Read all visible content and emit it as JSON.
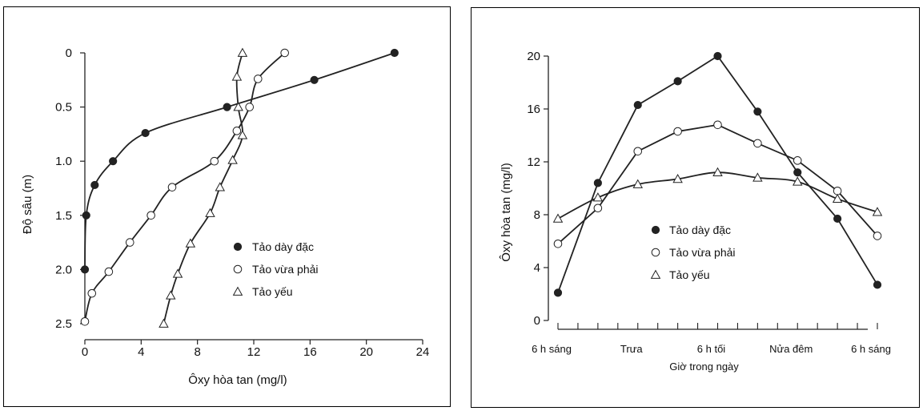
{
  "chart_data": [
    {
      "type": "line",
      "xlabel": "Ôxy hòa tan (mg/l)",
      "ylabel": "Độ sâu (m)",
      "xlim": [
        0,
        24
      ],
      "ylim": [
        2.5,
        0
      ],
      "x_ticks": [
        0,
        4,
        8,
        12,
        16,
        20,
        24
      ],
      "y_ticks": [
        0,
        0.5,
        1.0,
        1.5,
        2.0,
        2.5
      ],
      "x_tick_labels": [
        "0",
        "4",
        "8",
        "12",
        "16",
        "20",
        "24"
      ],
      "y_tick_labels": [
        "0",
        "0.5",
        "1.0",
        "1.5",
        "2.0",
        "2.5"
      ],
      "legend_position": "center-right",
      "series": [
        {
          "name": "Tảo dày đặc",
          "marker": "filled-circle",
          "points": [
            [
              22.0,
              0
            ],
            [
              16.3,
              0.25
            ],
            [
              10.1,
              0.5
            ],
            [
              4.3,
              0.74
            ],
            [
              2.0,
              1.0
            ],
            [
              0.7,
              1.22
            ],
            [
              0.1,
              1.5
            ],
            [
              0.0,
              2.0
            ]
          ]
        },
        {
          "name": "Tảo vừa phải",
          "marker": "open-circle",
          "points": [
            [
              14.2,
              0
            ],
            [
              12.3,
              0.24
            ],
            [
              11.7,
              0.5
            ],
            [
              10.8,
              0.72
            ],
            [
              9.2,
              1.0
            ],
            [
              6.2,
              1.24
            ],
            [
              4.7,
              1.5
            ],
            [
              3.2,
              1.75
            ],
            [
              1.7,
              2.02
            ],
            [
              0.5,
              2.22
            ],
            [
              0.0,
              2.48
            ]
          ]
        },
        {
          "name": "Tảo yếu",
          "marker": "open-triangle",
          "points": [
            [
              11.2,
              0
            ],
            [
              10.8,
              0.22
            ],
            [
              10.9,
              0.5
            ],
            [
              11.2,
              0.76
            ],
            [
              10.5,
              0.99
            ],
            [
              9.6,
              1.24
            ],
            [
              8.9,
              1.48
            ],
            [
              7.5,
              1.76
            ],
            [
              6.6,
              2.04
            ],
            [
              6.1,
              2.24
            ],
            [
              5.6,
              2.5
            ]
          ]
        }
      ]
    },
    {
      "type": "line",
      "xlabel": "Giờ trong ngày",
      "ylabel": "Ôxy hòa tan (mg/l)",
      "ylim": [
        0,
        20
      ],
      "y_ticks": [
        0,
        4,
        8,
        12,
        16,
        20
      ],
      "y_tick_labels": [
        "0",
        "4",
        "8",
        "12",
        "16",
        "20"
      ],
      "x_tick_labels": [
        "6 h sáng",
        "Trưa",
        "6 h tối",
        "Nửa đêm",
        "6 h sáng"
      ],
      "x_label_hours": [
        0,
        6,
        12,
        18,
        24
      ],
      "minor_tick_every_hours": 1.5,
      "legend_position": "bottom-center",
      "series": [
        {
          "name": "Tảo dày đặc",
          "marker": "filled-circle",
          "points": [
            [
              0,
              2.1
            ],
            [
              3,
              10.4
            ],
            [
              6,
              16.3
            ],
            [
              9,
              18.1
            ],
            [
              12,
              20.0
            ],
            [
              15,
              15.8
            ],
            [
              18,
              11.2
            ],
            [
              21,
              7.7
            ],
            [
              24,
              2.7
            ]
          ]
        },
        {
          "name": "Tảo vừa phải",
          "marker": "open-circle",
          "points": [
            [
              0,
              5.8
            ],
            [
              3,
              8.5
            ],
            [
              6,
              12.8
            ],
            [
              9,
              14.3
            ],
            [
              12,
              14.8
            ],
            [
              15,
              13.4
            ],
            [
              18,
              12.1
            ],
            [
              21,
              9.8
            ],
            [
              24,
              6.4
            ]
          ]
        },
        {
          "name": "Tảo yếu",
          "marker": "open-triangle",
          "points": [
            [
              0,
              7.7
            ],
            [
              3,
              9.3
            ],
            [
              6,
              10.3
            ],
            [
              9,
              10.7
            ],
            [
              12,
              11.2
            ],
            [
              15,
              10.8
            ],
            [
              18,
              10.5
            ],
            [
              21,
              9.2
            ],
            [
              24,
              8.2
            ]
          ]
        }
      ]
    }
  ]
}
